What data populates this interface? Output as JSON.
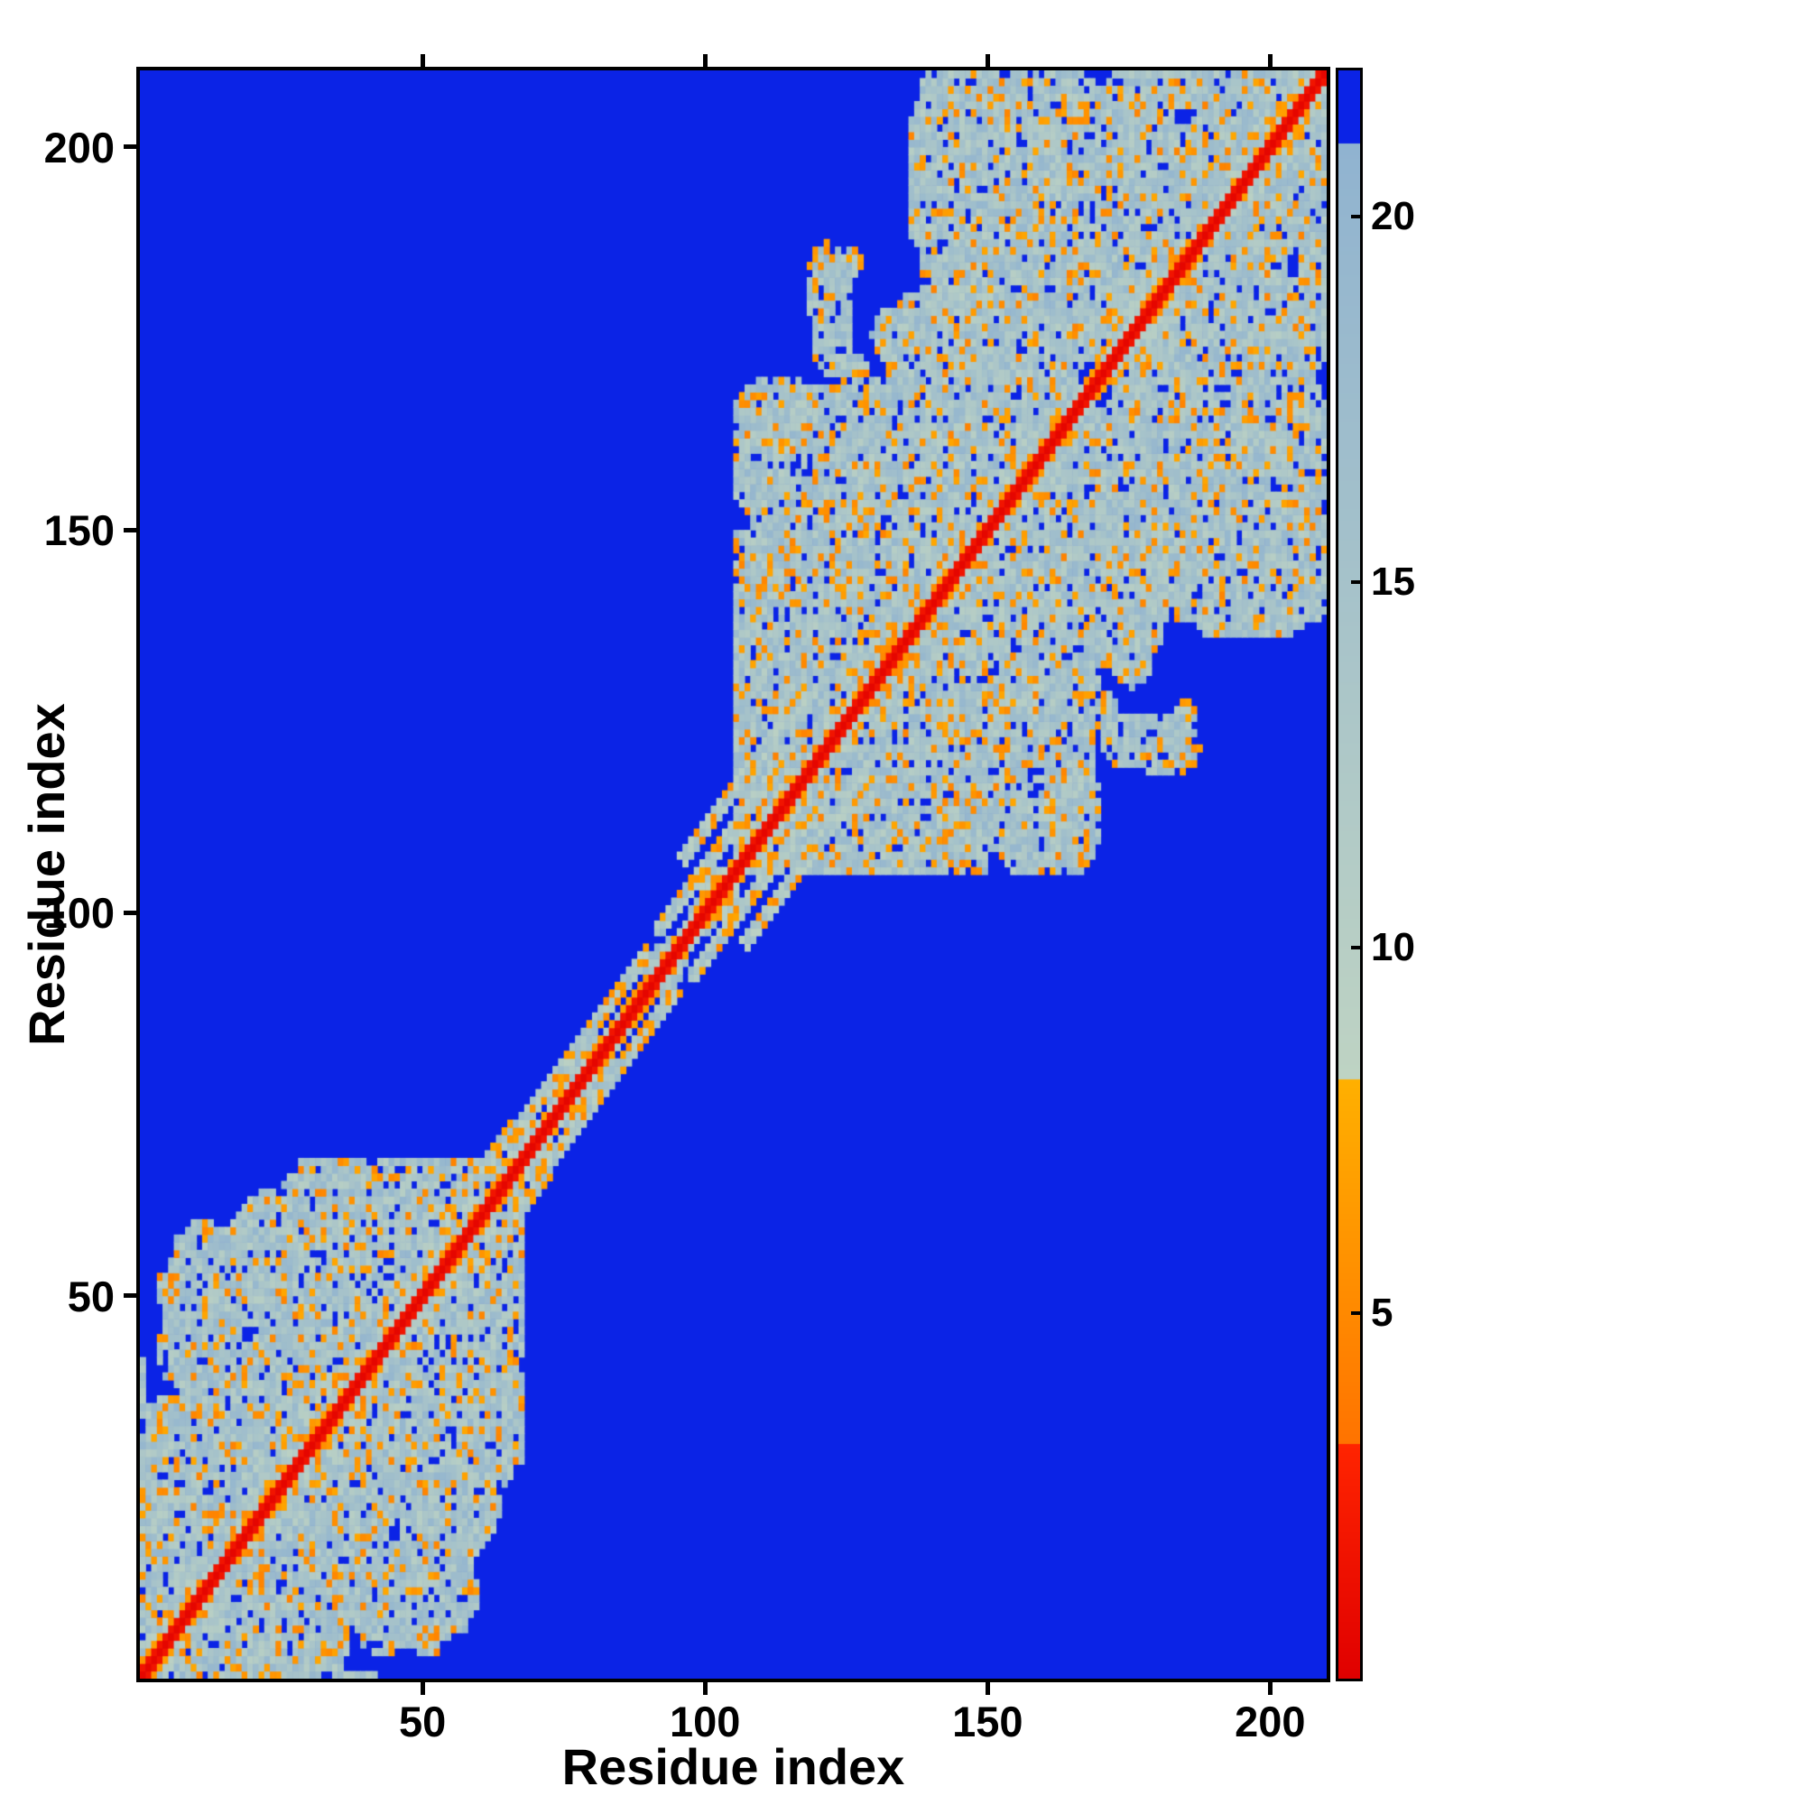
{
  "figure": {
    "background": "#ffffff",
    "frame_color": "#000000"
  },
  "chart_data": {
    "type": "heatmap",
    "title": "",
    "xlabel": "Residue index",
    "ylabel": "Residue index",
    "x_range": [
      1,
      210
    ],
    "y_range": [
      1,
      210
    ],
    "x_ticks": [
      50,
      100,
      150,
      200
    ],
    "y_ticks": [
      50,
      100,
      150,
      200
    ],
    "grid": false,
    "legend_position": "colorbar-right",
    "colorbar": {
      "ticks": [
        5,
        10,
        15,
        20
      ],
      "vmin": 0,
      "vmax": 22
    },
    "colors": {
      "background_blue": "#0b23e6",
      "contact_teal_low": "#bed3c3",
      "contact_teal_high": "#90b3d0",
      "near_contact_orange_low": "#ff7300",
      "near_contact_orange_high": "#ffb000",
      "diagonal_red_low": "#e00000",
      "diagonal_red_high": "#ff2400"
    },
    "content": {
      "description": "Symmetric protein residue-residue distance/contact map (210 x 210). Red main diagonal = zero/short distance, orange = near contacts (~3-8), pale teal = contacts (~8-21), saturated blue = beyond cutoff. Two dense intra-domain contact clusters hug the diagonal (residues ~1-68 and ~106-210), joined by a narrow diagonal band through the linker region (residues ~68-106) that shows short off-diagonal hairpin streaks.",
      "n_residues": 210,
      "domains": [
        {
          "start": 1,
          "end": 68
        },
        {
          "start": 106,
          "end": 210
        }
      ],
      "linker": {
        "start": 68,
        "end": 106
      },
      "hairpin_segments": [
        {
          "a": 57,
          "b": 70,
          "off": 6,
          "w": 1
        },
        {
          "a": 70,
          "b": 93,
          "off": 5,
          "w": 1
        },
        {
          "a": 95,
          "b": 119,
          "off": 6,
          "w": 1
        },
        {
          "a": 102,
          "b": 124,
          "off": 11,
          "w": 1
        }
      ],
      "seed": 11
    }
  }
}
